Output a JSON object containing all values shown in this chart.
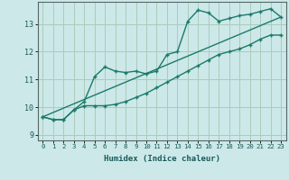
{
  "xlabel": "Humidex (Indice chaleur)",
  "ylabel": "",
  "bg_color": "#cce8e8",
  "grid_color": "#aaccbb",
  "line_color": "#1a7a6a",
  "xlim": [
    -0.5,
    23.5
  ],
  "ylim": [
    8.8,
    13.8
  ],
  "xticks": [
    0,
    1,
    2,
    3,
    4,
    5,
    6,
    7,
    8,
    9,
    10,
    11,
    12,
    13,
    14,
    15,
    16,
    17,
    18,
    19,
    20,
    21,
    22,
    23
  ],
  "yticks": [
    9,
    10,
    11,
    12,
    13
  ],
  "line1_x": [
    0,
    1,
    2,
    3,
    4,
    5,
    6,
    7,
    8,
    9,
    10,
    11,
    12,
    13,
    14,
    15,
    16,
    17,
    18,
    19,
    20,
    21,
    22,
    23
  ],
  "line1_y": [
    9.65,
    9.55,
    9.55,
    9.9,
    10.2,
    11.1,
    11.45,
    11.3,
    11.25,
    11.3,
    11.2,
    11.3,
    11.9,
    12.0,
    13.1,
    13.5,
    13.4,
    13.1,
    13.2,
    13.3,
    13.35,
    13.45,
    13.55,
    13.25
  ],
  "line2_x": [
    0,
    1,
    2,
    3,
    4,
    5,
    6,
    7,
    8,
    9,
    10,
    11,
    12,
    13,
    14,
    15,
    16,
    17,
    18,
    19,
    20,
    21,
    22,
    23
  ],
  "line2_y": [
    9.65,
    9.55,
    9.55,
    9.9,
    10.05,
    10.05,
    10.05,
    10.1,
    10.2,
    10.35,
    10.5,
    10.7,
    10.9,
    11.1,
    11.3,
    11.5,
    11.7,
    11.9,
    12.0,
    12.1,
    12.25,
    12.45,
    12.6,
    12.6
  ],
  "line3_x": [
    0,
    23
  ],
  "line3_y": [
    9.65,
    13.25
  ]
}
